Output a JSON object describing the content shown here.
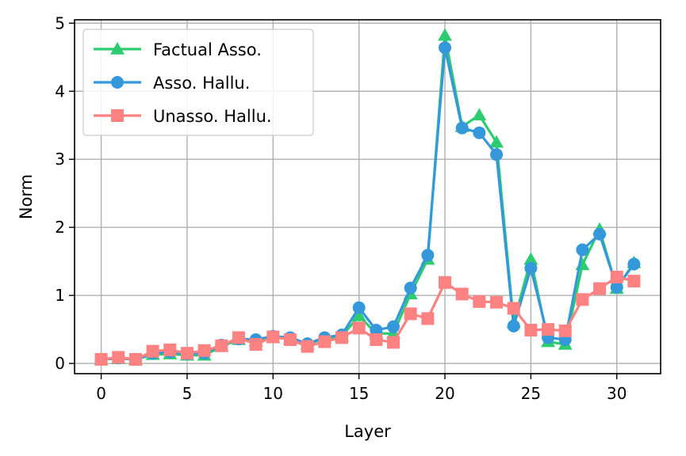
{
  "chart_data": {
    "type": "line",
    "xlabel": "Layer",
    "ylabel": "Norm",
    "xlim": [
      -1.55,
      32.55
    ],
    "ylim": [
      -0.15,
      5.05
    ],
    "xticks": [
      0,
      5,
      10,
      15,
      20,
      25,
      30
    ],
    "yticks": [
      0,
      1,
      2,
      3,
      4,
      5
    ],
    "grid": true,
    "legend_position": "upper-left",
    "x": [
      0,
      1,
      2,
      3,
      4,
      5,
      6,
      7,
      8,
      9,
      10,
      11,
      12,
      13,
      14,
      15,
      16,
      17,
      18,
      19,
      20,
      21,
      22,
      23,
      24,
      25,
      26,
      27,
      28,
      29,
      30,
      31
    ],
    "series": [
      {
        "name": "Factual Asso.",
        "color": "#2ecc71",
        "marker": "triangle",
        "values": [
          0.06,
          0.07,
          0.06,
          0.13,
          0.14,
          0.12,
          0.12,
          0.25,
          0.35,
          0.33,
          0.38,
          0.36,
          0.28,
          0.37,
          0.4,
          0.7,
          0.44,
          0.44,
          1.02,
          1.53,
          4.82,
          3.48,
          3.65,
          3.25,
          0.6,
          1.53,
          0.32,
          0.28,
          1.45,
          1.97,
          1.1,
          1.48
        ]
      },
      {
        "name": "Asso. Hallu.",
        "color": "#3498db",
        "marker": "circle",
        "values": [
          0.06,
          0.08,
          0.06,
          0.15,
          0.17,
          0.14,
          0.15,
          0.27,
          0.36,
          0.35,
          0.4,
          0.38,
          0.29,
          0.38,
          0.42,
          0.82,
          0.49,
          0.54,
          1.11,
          1.59,
          4.64,
          3.46,
          3.39,
          3.07,
          0.55,
          1.4,
          0.38,
          0.35,
          1.67,
          1.9,
          1.12,
          1.46
        ]
      },
      {
        "name": "Unasso. Hallu.",
        "color": "#ff8282",
        "marker": "square",
        "values": [
          0.06,
          0.09,
          0.06,
          0.18,
          0.2,
          0.15,
          0.19,
          0.26,
          0.38,
          0.28,
          0.39,
          0.35,
          0.25,
          0.32,
          0.38,
          0.52,
          0.35,
          0.31,
          0.73,
          0.66,
          1.19,
          1.02,
          0.91,
          0.9,
          0.81,
          0.49,
          0.5,
          0.48,
          0.94,
          1.1,
          1.27,
          1.21
        ]
      }
    ]
  }
}
